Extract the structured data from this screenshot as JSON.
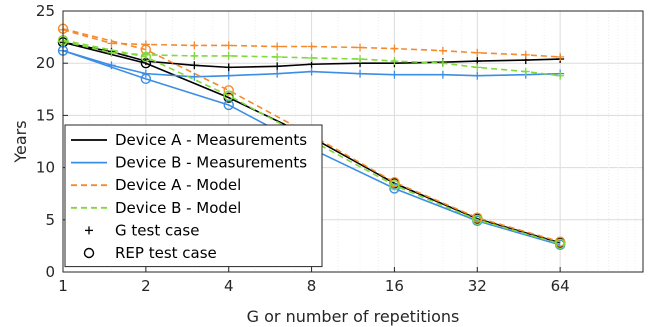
{
  "chart_data": {
    "type": "line",
    "xlabel": "G or number of repetitions",
    "ylabel": "Years",
    "x_scale": "log2",
    "xlim": [
      1,
      128
    ],
    "ylim": [
      0,
      25
    ],
    "x_ticks": [
      1,
      2,
      4,
      8,
      16,
      32,
      64
    ],
    "y_ticks": [
      0,
      5,
      10,
      15,
      20,
      25
    ],
    "grid": true,
    "legend_position": "bottom-left",
    "series": [
      {
        "name": "Device A - Measurements",
        "color": "#000000",
        "dash": "solid",
        "marker": "plus",
        "x": [
          1,
          1.5,
          2,
          3,
          4,
          6,
          8,
          12,
          16,
          24,
          32,
          48,
          64
        ],
        "y": [
          22.0,
          21.1,
          20.2,
          19.8,
          19.6,
          19.7,
          19.9,
          20.0,
          20.0,
          20.1,
          20.2,
          20.3,
          20.4
        ]
      },
      {
        "name": "Device A - Measurements",
        "color": "#000000",
        "dash": "solid",
        "marker": "circle",
        "x": [
          1,
          2,
          4,
          8,
          16,
          32,
          64
        ],
        "y": [
          22.0,
          20.0,
          16.7,
          12.9,
          8.5,
          5.1,
          2.8
        ]
      },
      {
        "name": "Device B - Measurements",
        "color": "#3b8ee6",
        "dash": "solid",
        "marker": "plus",
        "x": [
          1,
          1.5,
          2,
          3,
          4,
          6,
          8,
          12,
          16,
          24,
          32,
          48,
          64
        ],
        "y": [
          21.2,
          19.8,
          19.0,
          18.7,
          18.8,
          19.0,
          19.2,
          19.0,
          18.9,
          18.9,
          18.8,
          18.9,
          19.0
        ]
      },
      {
        "name": "Device B - Measurements",
        "color": "#3b8ee6",
        "dash": "solid",
        "marker": "circle",
        "x": [
          1,
          2,
          4,
          8,
          16,
          32,
          64
        ],
        "y": [
          21.2,
          18.5,
          16.0,
          11.8,
          8.0,
          4.9,
          2.6
        ]
      },
      {
        "name": "Device A - Model",
        "color": "#f58a2c",
        "dash": "dashed",
        "marker": "plus",
        "x": [
          1,
          1.5,
          2,
          3,
          4,
          6,
          8,
          12,
          16,
          24,
          32,
          48,
          64
        ],
        "y": [
          23.2,
          21.9,
          21.8,
          21.7,
          21.7,
          21.6,
          21.6,
          21.5,
          21.4,
          21.2,
          21.0,
          20.8,
          20.6
        ]
      },
      {
        "name": "Device A - Model",
        "color": "#f58a2c",
        "dash": "dashed",
        "marker": "circle",
        "x": [
          1,
          2,
          4,
          8,
          16,
          32,
          64
        ],
        "y": [
          23.3,
          21.3,
          17.4,
          13.1,
          8.6,
          5.2,
          2.9
        ]
      },
      {
        "name": "Device B - Model",
        "color": "#7fd93a",
        "dash": "dashed",
        "marker": "plus",
        "x": [
          1,
          1.5,
          2,
          3,
          4,
          6,
          8,
          12,
          16,
          24,
          32,
          48,
          64
        ],
        "y": [
          22.1,
          21.0,
          20.8,
          20.7,
          20.7,
          20.6,
          20.5,
          20.4,
          20.2,
          20.0,
          19.6,
          19.2,
          18.8
        ]
      },
      {
        "name": "Device B - Model",
        "color": "#7fd93a",
        "dash": "dashed",
        "marker": "circle",
        "x": [
          1,
          2,
          4,
          8,
          16,
          32,
          64
        ],
        "y": [
          22.2,
          20.6,
          16.9,
          12.6,
          8.3,
          5.0,
          2.7
        ]
      }
    ],
    "legend": [
      {
        "label": "Device A - Measurements",
        "color": "#000000",
        "style": "solid"
      },
      {
        "label": "Device B - Measurements",
        "color": "#3b8ee6",
        "style": "solid"
      },
      {
        "label": "Device A - Model",
        "color": "#f58a2c",
        "style": "dashed"
      },
      {
        "label": "Device B - Model",
        "color": "#7fd93a",
        "style": "dashed"
      },
      {
        "label": "G test case",
        "color": "#000000",
        "style": "plus"
      },
      {
        "label": "REP test case",
        "color": "#000000",
        "style": "circle"
      }
    ]
  }
}
